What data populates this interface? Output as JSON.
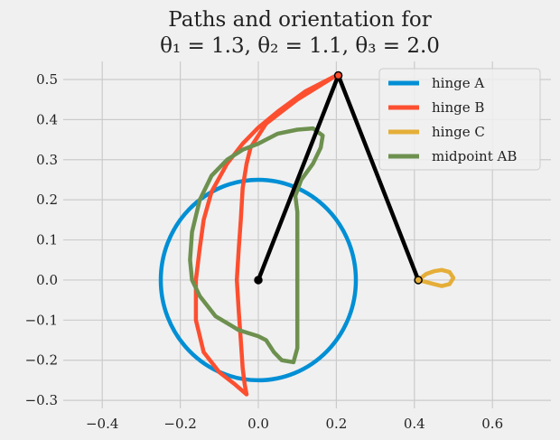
{
  "chart_data": {
    "type": "line",
    "title_line1": "Paths and orientation for",
    "title_line2": "θ₁ = 1.3, θ₂ = 1.1, θ₃ = 2.0",
    "xlabel": "",
    "ylabel": "",
    "xlim": [
      -0.5,
      0.75
    ],
    "ylim": [
      -0.32,
      0.545
    ],
    "xticks": [
      -0.4,
      -0.2,
      0.0,
      0.2,
      0.4,
      0.6
    ],
    "xtick_labels": [
      "−0.4",
      "−0.2",
      "0.0",
      "0.2",
      "0.4",
      "0.6"
    ],
    "yticks": [
      -0.3,
      -0.2,
      -0.1,
      0.0,
      0.1,
      0.2,
      0.3,
      0.4,
      0.5
    ],
    "ytick_labels": [
      "−0.3",
      "−0.2",
      "−0.1",
      "0.0",
      "0.1",
      "0.2",
      "0.3",
      "0.4",
      "0.5"
    ],
    "grid": true,
    "legend_position": "upper right",
    "series": [
      {
        "name": "hinge A",
        "color": "#008fd5",
        "shape": "circle",
        "center": [
          0,
          0
        ],
        "radius": 0.25
      },
      {
        "name": "hinge B",
        "color": "#fc4f30",
        "points": [
          [
            0.2,
            0.51
          ],
          [
            0.15,
            0.48
          ],
          [
            0.1,
            0.45
          ],
          [
            0.06,
            0.42
          ],
          [
            0.02,
            0.39
          ],
          [
            0.0,
            0.36
          ],
          [
            -0.02,
            0.33
          ],
          [
            -0.03,
            0.29
          ],
          [
            -0.04,
            0.23
          ],
          [
            -0.045,
            0.15
          ],
          [
            -0.05,
            0.08
          ],
          [
            -0.055,
            0.0
          ],
          [
            -0.05,
            -0.08
          ],
          [
            -0.045,
            -0.15
          ],
          [
            -0.04,
            -0.22
          ],
          [
            -0.035,
            -0.26
          ],
          [
            -0.03,
            -0.285
          ],
          [
            -0.06,
            -0.26
          ],
          [
            -0.1,
            -0.23
          ],
          [
            -0.14,
            -0.18
          ],
          [
            -0.16,
            -0.1
          ],
          [
            -0.16,
            0.0
          ],
          [
            -0.15,
            0.08
          ],
          [
            -0.14,
            0.15
          ],
          [
            -0.12,
            0.22
          ],
          [
            -0.08,
            0.29
          ],
          [
            -0.04,
            0.34
          ],
          [
            0.0,
            0.38
          ],
          [
            0.05,
            0.42
          ],
          [
            0.12,
            0.47
          ],
          [
            0.2,
            0.51
          ]
        ]
      },
      {
        "name": "hinge C",
        "color": "#e5ae38",
        "points": [
          [
            0.41,
            0.0
          ],
          [
            0.43,
            0.015
          ],
          [
            0.45,
            0.022
          ],
          [
            0.47,
            0.025
          ],
          [
            0.49,
            0.02
          ],
          [
            0.5,
            0.005
          ],
          [
            0.49,
            -0.01
          ],
          [
            0.47,
            -0.015
          ],
          [
            0.45,
            -0.01
          ],
          [
            0.43,
            -0.005
          ],
          [
            0.41,
            0.0
          ]
        ]
      },
      {
        "name": "midpoint AB",
        "color": "#6d904f",
        "points": [
          [
            0.0,
            0.34
          ],
          [
            0.05,
            0.365
          ],
          [
            0.1,
            0.375
          ],
          [
            0.14,
            0.378
          ],
          [
            0.165,
            0.36
          ],
          [
            0.16,
            0.33
          ],
          [
            0.14,
            0.29
          ],
          [
            0.11,
            0.25
          ],
          [
            0.095,
            0.21
          ],
          [
            0.1,
            0.17
          ],
          [
            0.1,
            0.1
          ],
          [
            0.1,
            0.0
          ],
          [
            0.1,
            -0.1
          ],
          [
            0.1,
            -0.17
          ],
          [
            0.09,
            -0.205
          ],
          [
            0.06,
            -0.2
          ],
          [
            0.04,
            -0.18
          ],
          [
            0.02,
            -0.15
          ],
          [
            0.0,
            -0.14
          ],
          [
            -0.05,
            -0.125
          ],
          [
            -0.11,
            -0.09
          ],
          [
            -0.15,
            -0.04
          ],
          [
            -0.17,
            0.0
          ],
          [
            -0.175,
            0.05
          ],
          [
            -0.17,
            0.12
          ],
          [
            -0.15,
            0.2
          ],
          [
            -0.12,
            0.26
          ],
          [
            -0.08,
            0.3
          ],
          [
            -0.04,
            0.325
          ],
          [
            0.0,
            0.34
          ]
        ]
      }
    ],
    "linkage": {
      "color": "#000000",
      "points": [
        [
          0.0,
          0.0
        ],
        [
          0.205,
          0.51
        ],
        [
          0.41,
          0.0
        ]
      ]
    }
  }
}
